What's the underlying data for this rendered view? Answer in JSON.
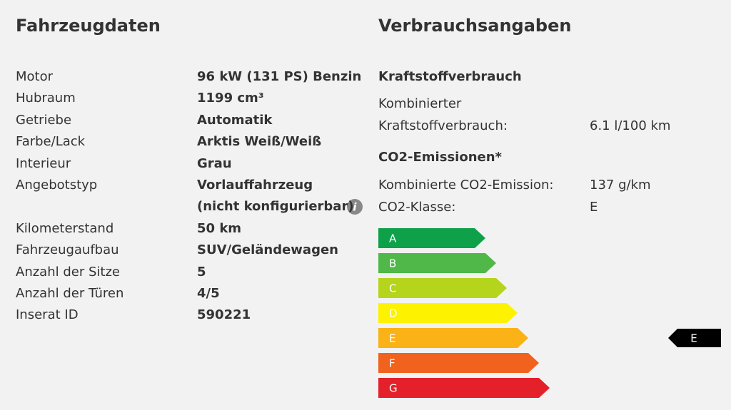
{
  "vehicle": {
    "title": "Fahrzeugdaten",
    "rows": [
      {
        "label": "Motor",
        "value": [
          "96 kW (131 PS) Benzin"
        ]
      },
      {
        "label": "Hubraum",
        "value": [
          "1199 cm³"
        ]
      },
      {
        "label": "Getriebe",
        "value": [
          "Automatik"
        ]
      },
      {
        "label": "Farbe/Lack",
        "value": [
          "Arktis Weiß/Weiß"
        ]
      },
      {
        "label": "Interieur",
        "value": [
          "Grau"
        ]
      },
      {
        "label": "Angebotstyp",
        "value": [
          "Vorlauffahrzeug",
          "(nicht konfigurierbar)"
        ]
      },
      {
        "label": "Kilometerstand",
        "value": [
          "50 km"
        ]
      },
      {
        "label": "Fahrzeugaufbau",
        "value": [
          "SUV/Geländewagen"
        ]
      },
      {
        "label": "Anzahl der Sitze",
        "value": [
          "5"
        ]
      },
      {
        "label": "Anzahl der Türen",
        "value": [
          "4/5"
        ]
      },
      {
        "label": "Inserat ID",
        "value": [
          "590221"
        ]
      }
    ]
  },
  "consumption": {
    "title": "Verbrauchsangaben",
    "fuel_heading": "Kraftstoffverbrauch",
    "fuel_label": [
      "Kombinierter",
      "Kraftstoffverbrauch:"
    ],
    "fuel_value": "6.1 l/100 km",
    "co2_heading": "CO2-Emissionen*",
    "co2_rows": [
      {
        "label": "Kombinierte CO2-Emission:",
        "value": "137 g/km"
      },
      {
        "label": "CO2-Klasse:",
        "value": "E"
      }
    ],
    "classes": [
      {
        "label": "A",
        "color": "#0fa14a"
      },
      {
        "label": "B",
        "color": "#4fb848"
      },
      {
        "label": "C",
        "color": "#b5d41c"
      },
      {
        "label": "D",
        "color": "#fdf200"
      },
      {
        "label": "E",
        "color": "#fbb216"
      },
      {
        "label": "F",
        "color": "#f0621e"
      },
      {
        "label": "G",
        "color": "#e4202a"
      }
    ]
  }
}
